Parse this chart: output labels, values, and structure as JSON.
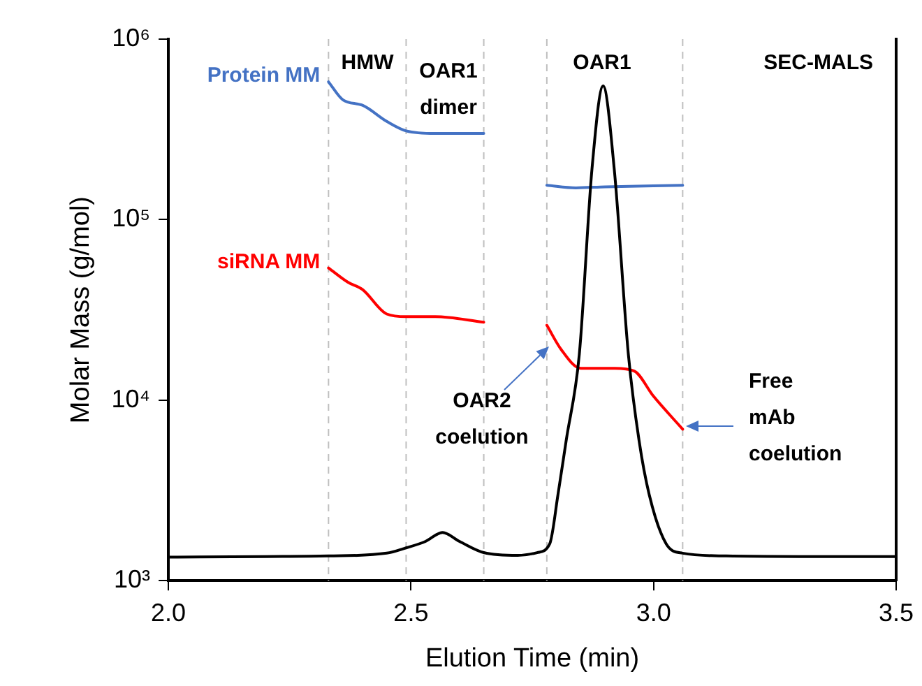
{
  "chart_data": {
    "type": "line",
    "xlabel": "Elution Time (min)",
    "ylabel": "Molar Mass (g/mol)",
    "xlim": [
      2.0,
      3.5
    ],
    "xticks": [
      {
        "value": 2,
        "label": "2.0"
      },
      {
        "value": 2.5,
        "label": "2.5"
      },
      {
        "value": 3,
        "label": "3.0"
      },
      {
        "value": 3.5,
        "label": "3.5"
      }
    ],
    "ylim": [
      1000,
      1000000
    ],
    "yticks": [
      {
        "value": 1000,
        "label": "10³"
      },
      {
        "value": 10000,
        "label": "10⁴"
      },
      {
        "value": 100000,
        "label": "10⁵"
      },
      {
        "value": 1000000,
        "label": "10⁶"
      }
    ],
    "log": "y",
    "grid": false,
    "legend": false,
    "marker": "none",
    "line_style": "solid",
    "series": [
      {
        "color": "#000000",
        "x": [
          2.0,
          2.2,
          2.33,
          2.45,
          2.49,
          2.53,
          2.565,
          2.6,
          2.65,
          2.72,
          2.76,
          2.786,
          2.803,
          2.82,
          2.847,
          2.873,
          2.896,
          2.919,
          2.948,
          2.97,
          2.991,
          3.026,
          3.06,
          3.15,
          3.3,
          3.5
        ],
        "values": [
          1350,
          1360,
          1370,
          1420,
          1520,
          1650,
          1850,
          1650,
          1430,
          1380,
          1430,
          1600,
          3000,
          6000,
          18000,
          190000,
          550000,
          190000,
          18000,
          6000,
          3000,
          1600,
          1420,
          1370,
          1360,
          1360
        ]
      },
      {
        "name": "Protein MM",
        "color": "#4472c4",
        "x": [
          2.33,
          2.36,
          2.4,
          2.45,
          2.49,
          2.55,
          2.65,
          2.7,
          2.78,
          2.84,
          2.9,
          3.06
        ],
        "values": [
          580000,
          460000,
          430000,
          350000,
          310000,
          300000,
          300000,
          null,
          155000,
          150000,
          152000,
          155000
        ]
      },
      {
        "name": "siRNA MM",
        "color": "#ff0000",
        "x": [
          2.33,
          2.37,
          2.4,
          2.45,
          2.49,
          2.55,
          2.65,
          2.7,
          2.78,
          2.81,
          2.85,
          2.92,
          2.96,
          3.0,
          3.06
        ],
        "values": [
          54000,
          45000,
          41000,
          30000,
          29000,
          29000,
          27000,
          null,
          26000,
          19000,
          15000,
          15000,
          14500,
          10500,
          6900
        ]
      }
    ],
    "ref_lines": [
      {
        "axis": "x",
        "value": 2.33,
        "color": "#bfbfbf",
        "line_style": "dashed"
      },
      {
        "axis": "x",
        "value": 2.49,
        "color": "#bfbfbf",
        "line_style": "dashed"
      },
      {
        "axis": "x",
        "value": 2.65,
        "color": "#bfbfbf",
        "line_style": "dashed"
      },
      {
        "axis": "x",
        "value": 2.78,
        "color": "#bfbfbf",
        "line_style": "dashed"
      },
      {
        "axis": "x",
        "value": 3.06,
        "color": "#bfbfbf",
        "line_style": "dashed"
      }
    ],
    "annotations": [
      "HMW",
      "OAR1 dimer",
      "OAR1",
      "SEC-MALS",
      "OAR2 coelution",
      "Free mAb coelution"
    ]
  }
}
